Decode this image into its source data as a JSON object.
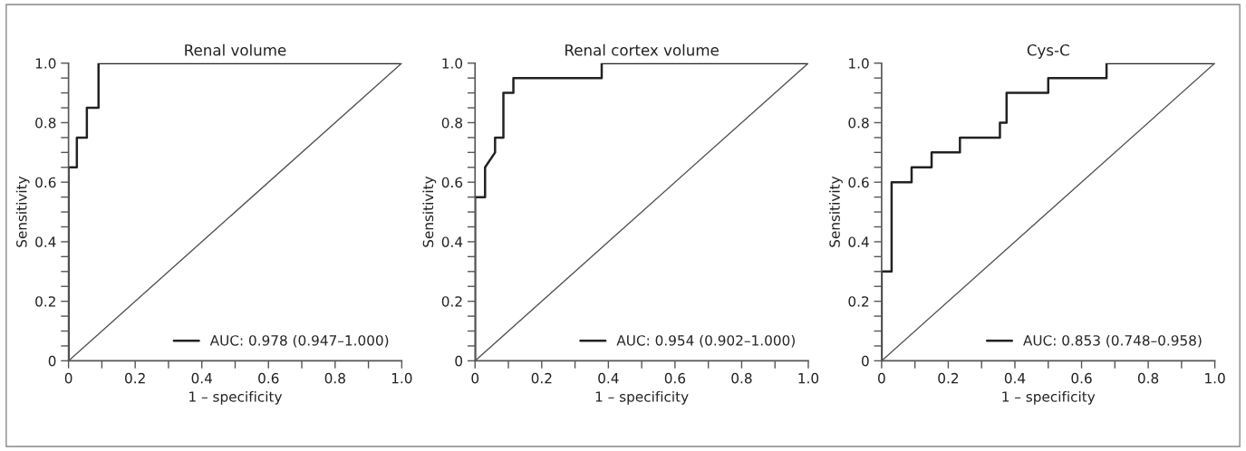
{
  "chart_data": [
    {
      "type": "line",
      "title": "Renal volume",
      "xlabel": "1 – specificity",
      "ylabel": "Sensitivity",
      "xlim": [
        0,
        1
      ],
      "ylim": [
        0,
        1
      ],
      "xticks": [
        0,
        {
          "value": 0.1,
          "label": null
        },
        0.2,
        {
          "value": 0.3,
          "label": null
        },
        0.4,
        {
          "value": 0.5,
          "label": null
        },
        0.6,
        {
          "value": 0.7,
          "label": null
        },
        0.8,
        {
          "value": 0.9,
          "label": null
        },
        {
          "value": 1,
          "label": "1.0"
        }
      ],
      "yticks": [
        0,
        {
          "value": 0.05,
          "label": null
        },
        {
          "value": 0.1,
          "label": null
        },
        {
          "value": 0.15,
          "label": null
        },
        0.2,
        {
          "value": 0.25,
          "label": null
        },
        {
          "value": 0.3,
          "label": null
        },
        {
          "value": 0.35,
          "label": null
        },
        0.4,
        {
          "value": 0.45,
          "label": null
        },
        {
          "value": 0.5,
          "label": null
        },
        {
          "value": 0.55,
          "label": null
        },
        0.6,
        {
          "value": 0.65,
          "label": null
        },
        {
          "value": 0.7,
          "label": null
        },
        {
          "value": 0.75,
          "label": null
        },
        0.8,
        {
          "value": 0.85,
          "label": null
        },
        {
          "value": 0.9,
          "label": null
        },
        {
          "value": 0.95,
          "label": null
        },
        {
          "value": 1,
          "label": "1.0"
        }
      ],
      "grid": false,
      "legend": "bottom right",
      "series": [
        {
          "name": "AUC: 0.978 (0.947–1.000)",
          "color": "#222222",
          "x": [
            0,
            0,
            0.025,
            0.025,
            0.055,
            0.055,
            0.09,
            0.09,
            1
          ],
          "values": [
            0,
            0.65,
            0.65,
            0.75,
            0.75,
            0.85,
            0.85,
            1,
            1
          ]
        },
        {
          "color": "#555555",
          "x": [
            0,
            1
          ],
          "values": [
            0,
            1
          ]
        }
      ]
    },
    {
      "type": "line",
      "title": "Renal cortex volume",
      "xlabel": "1 – specificity",
      "ylabel": "Sensitivity",
      "xlim": [
        0,
        1
      ],
      "ylim": [
        0,
        1
      ],
      "xticks": [
        0,
        {
          "value": 0.1,
          "label": null
        },
        0.2,
        {
          "value": 0.3,
          "label": null
        },
        0.4,
        {
          "value": 0.5,
          "label": null
        },
        0.6,
        {
          "value": 0.7,
          "label": null
        },
        0.8,
        {
          "value": 0.9,
          "label": null
        },
        {
          "value": 1,
          "label": "1.0"
        }
      ],
      "yticks": [
        0,
        {
          "value": 0.05,
          "label": null
        },
        {
          "value": 0.1,
          "label": null
        },
        {
          "value": 0.15,
          "label": null
        },
        0.2,
        {
          "value": 0.25,
          "label": null
        },
        {
          "value": 0.3,
          "label": null
        },
        {
          "value": 0.35,
          "label": null
        },
        0.4,
        {
          "value": 0.45,
          "label": null
        },
        {
          "value": 0.5,
          "label": null
        },
        {
          "value": 0.55,
          "label": null
        },
        0.6,
        {
          "value": 0.65,
          "label": null
        },
        {
          "value": 0.7,
          "label": null
        },
        {
          "value": 0.75,
          "label": null
        },
        0.8,
        {
          "value": 0.85,
          "label": null
        },
        {
          "value": 0.9,
          "label": null
        },
        {
          "value": 0.95,
          "label": null
        },
        {
          "value": 1,
          "label": "1.0"
        }
      ],
      "grid": false,
      "legend": "bottom right",
      "series": [
        {
          "name": "AUC: 0.954 (0.902–1.000)",
          "color": "#222222",
          "x": [
            0,
            0,
            0.03,
            0.03,
            0.06,
            0.06,
            0.085,
            0.085,
            0.115,
            0.115,
            0.38,
            0.38,
            1
          ],
          "values": [
            0,
            0.55,
            0.55,
            0.65,
            0.7,
            0.75,
            0.75,
            0.9,
            0.9,
            0.95,
            0.95,
            1,
            1
          ]
        },
        {
          "color": "#555555",
          "x": [
            0,
            1
          ],
          "values": [
            0,
            1
          ]
        }
      ]
    },
    {
      "type": "line",
      "title": "Cys-C",
      "xlabel": "1 – specificity",
      "ylabel": "Sensitivity",
      "xlim": [
        0,
        1
      ],
      "ylim": [
        0,
        1
      ],
      "xticks": [
        0,
        {
          "value": 0.1,
          "label": null
        },
        0.2,
        {
          "value": 0.3,
          "label": null
        },
        0.4,
        {
          "value": 0.5,
          "label": null
        },
        0.6,
        {
          "value": 0.7,
          "label": null
        },
        0.8,
        {
          "value": 0.9,
          "label": null
        },
        {
          "value": 1,
          "label": "1.0"
        }
      ],
      "yticks": [
        0,
        {
          "value": 0.05,
          "label": null
        },
        {
          "value": 0.1,
          "label": null
        },
        {
          "value": 0.15,
          "label": null
        },
        0.2,
        {
          "value": 0.25,
          "label": null
        },
        {
          "value": 0.3,
          "label": null
        },
        {
          "value": 0.35,
          "label": null
        },
        0.4,
        {
          "value": 0.45,
          "label": null
        },
        {
          "value": 0.5,
          "label": null
        },
        {
          "value": 0.55,
          "label": null
        },
        0.6,
        {
          "value": 0.65,
          "label": null
        },
        {
          "value": 0.7,
          "label": null
        },
        {
          "value": 0.75,
          "label": null
        },
        0.8,
        {
          "value": 0.85,
          "label": null
        },
        {
          "value": 0.9,
          "label": null
        },
        {
          "value": 0.95,
          "label": null
        },
        {
          "value": 1,
          "label": "1.0"
        }
      ],
      "grid": false,
      "legend": "bottom right",
      "series": [
        {
          "name": "AUC: 0.853 (0.748–0.958)",
          "color": "#222222",
          "x": [
            0,
            0,
            0.03,
            0.03,
            0.09,
            0.09,
            0.15,
            0.15,
            0.235,
            0.235,
            0.355,
            0.355,
            0.375,
            0.375,
            0.5,
            0.5,
            0.675,
            0.675,
            1
          ],
          "values": [
            0,
            0.3,
            0.3,
            0.6,
            0.6,
            0.65,
            0.65,
            0.7,
            0.7,
            0.75,
            0.75,
            0.8,
            0.8,
            0.9,
            0.9,
            0.95,
            0.95,
            1,
            1
          ]
        },
        {
          "color": "#555555",
          "x": [
            0,
            1
          ],
          "values": [
            0,
            1
          ]
        }
      ]
    }
  ]
}
